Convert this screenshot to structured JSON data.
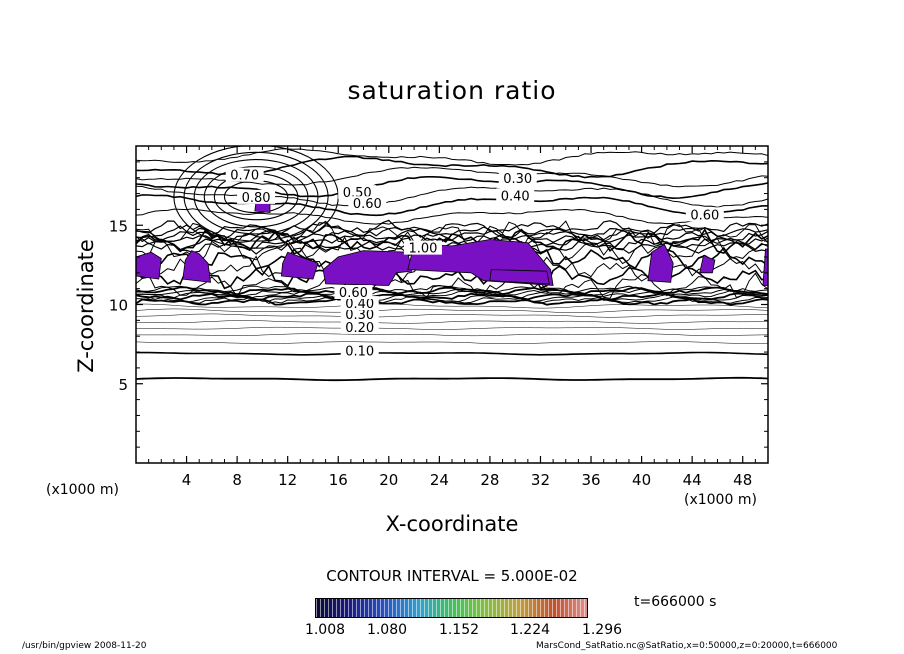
{
  "chart_data": {
    "type": "contour",
    "title": "saturation ratio",
    "xlabel": "X-coordinate",
    "ylabel": "Z-coordinate",
    "x_unit": "(x1000 m)",
    "y_unit": "(x1000 m)",
    "xlim": [
      0,
      50
    ],
    "ylim": [
      0,
      20
    ],
    "x_ticks": [
      4,
      8,
      12,
      16,
      20,
      24,
      28,
      32,
      36,
      40,
      44,
      48
    ],
    "y_ticks": [
      5,
      10,
      15
    ],
    "contour_interval_text": "CONTOUR INTERVAL = 5.000E-02",
    "contour_labels": [
      {
        "text": "0.10",
        "x": 17.7,
        "y": 6.9
      },
      {
        "text": "0.20",
        "x": 17.7,
        "y": 8.4
      },
      {
        "text": "0.30",
        "x": 17.7,
        "y": 9.2
      },
      {
        "text": "0.40",
        "x": 17.7,
        "y": 9.9
      },
      {
        "text": "0.60",
        "x": 17.2,
        "y": 10.6
      },
      {
        "text": "0.70",
        "x": 8.6,
        "y": 18.0
      },
      {
        "text": "0.80",
        "x": 9.5,
        "y": 16.6
      },
      {
        "text": "0.50",
        "x": 17.5,
        "y": 16.9
      },
      {
        "text": "0.60",
        "x": 18.3,
        "y": 16.2
      },
      {
        "text": "0.30",
        "x": 30.2,
        "y": 17.8
      },
      {
        "text": "0.40",
        "x": 30.0,
        "y": 16.7
      },
      {
        "text": "0.60",
        "x": 45.0,
        "y": 15.5
      },
      {
        "text": "1.00",
        "x": 22.7,
        "y": 13.4
      }
    ],
    "shaded_threshold": "saturation ratio > 1.0",
    "colorbar": {
      "ticks": [
        "1.008",
        "1.080",
        "1.152",
        "1.224",
        "1.296"
      ]
    },
    "time_label": "t=666000 s",
    "colors": {
      "shade": "#7a10c4",
      "contour": "#000000"
    }
  },
  "footer": {
    "left": "/usr/bin/gpview   2008-11-20",
    "right": "MarsCond_SatRatio.nc@SatRatio,x=0:50000,z=0:20000,t=666000"
  }
}
